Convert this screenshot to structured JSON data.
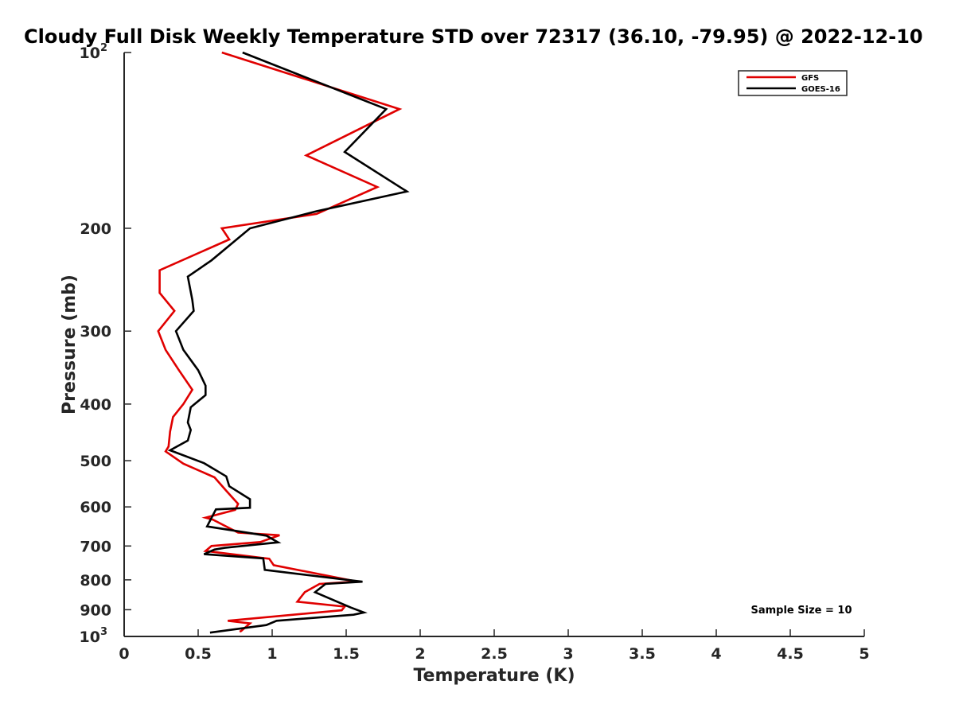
{
  "chart_data": {
    "type": "line",
    "title": "Cloudy Full Disk Weekly Temperature STD over 72317 (36.10, -79.95) @ 2022-12-10",
    "xlabel": "Temperature (K)",
    "ylabel": "Pressure (mb)",
    "xlim": [
      0,
      5
    ],
    "ylim": [
      100,
      1000
    ],
    "y_scale": "log",
    "y_reversed": true,
    "x_ticks": [
      "0",
      "0.5",
      "1",
      "1.5",
      "2",
      "2.5",
      "3",
      "3.5",
      "4",
      "4.5",
      "5"
    ],
    "y_ticks": [
      {
        "value": 100,
        "base": "10",
        "exp": "2"
      },
      {
        "value": 200,
        "label": "200"
      },
      {
        "value": 300,
        "label": "300"
      },
      {
        "value": 400,
        "label": "400"
      },
      {
        "value": 500,
        "label": "500"
      },
      {
        "value": 600,
        "label": "600"
      },
      {
        "value": 700,
        "label": "700"
      },
      {
        "value": 800,
        "label": "800"
      },
      {
        "value": 900,
        "label": "900"
      },
      {
        "value": 1000,
        "base": "10",
        "exp": "3"
      }
    ],
    "legend_position": "top-right",
    "grid": false,
    "annotation": "Sample Size = 10",
    "series": [
      {
        "name": "GFS",
        "color": "#e00000",
        "points": [
          [
            0.66,
            100
          ],
          [
            1.86,
            125
          ],
          [
            1.23,
            150
          ],
          [
            1.71,
            170
          ],
          [
            1.3,
            189
          ],
          [
            0.66,
            200
          ],
          [
            0.71,
            209
          ],
          [
            0.24,
            236
          ],
          [
            0.24,
            258
          ],
          [
            0.34,
            277
          ],
          [
            0.23,
            300
          ],
          [
            0.28,
            323
          ],
          [
            0.37,
            350
          ],
          [
            0.46,
            378
          ],
          [
            0.4,
            400
          ],
          [
            0.33,
            421
          ],
          [
            0.31,
            446
          ],
          [
            0.3,
            473
          ],
          [
            0.28,
            482
          ],
          [
            0.4,
            506
          ],
          [
            0.61,
            534
          ],
          [
            0.69,
            563
          ],
          [
            0.77,
            593
          ],
          [
            0.75,
            607
          ],
          [
            0.55,
            626
          ],
          [
            0.6,
            631
          ],
          [
            0.77,
            664
          ],
          [
            1.05,
            671
          ],
          [
            0.92,
            689
          ],
          [
            0.59,
            700
          ],
          [
            0.55,
            714
          ],
          [
            0.98,
            736
          ],
          [
            1.01,
            755
          ],
          [
            1.57,
            805
          ],
          [
            1.32,
            813
          ],
          [
            1.22,
            840
          ],
          [
            1.17,
            872
          ],
          [
            1.49,
            889
          ],
          [
            1.47,
            902
          ],
          [
            0.7,
            940
          ],
          [
            0.85,
            950
          ],
          [
            0.79,
            979
          ],
          [
            0.78,
            981
          ]
        ]
      },
      {
        "name": "GOES-16",
        "color": "#000000",
        "points": [
          [
            0.8,
            100
          ],
          [
            1.77,
            125
          ],
          [
            1.49,
            148
          ],
          [
            1.91,
            173
          ],
          [
            1.3,
            187
          ],
          [
            0.85,
            200
          ],
          [
            0.59,
            227
          ],
          [
            0.43,
            242
          ],
          [
            0.46,
            265
          ],
          [
            0.47,
            277
          ],
          [
            0.35,
            300
          ],
          [
            0.4,
            323
          ],
          [
            0.5,
            350
          ],
          [
            0.55,
            372
          ],
          [
            0.55,
            386
          ],
          [
            0.45,
            405
          ],
          [
            0.43,
            430
          ],
          [
            0.45,
            443
          ],
          [
            0.43,
            462
          ],
          [
            0.31,
            480
          ],
          [
            0.54,
            505
          ],
          [
            0.69,
            532
          ],
          [
            0.71,
            553
          ],
          [
            0.85,
            582
          ],
          [
            0.85,
            602
          ],
          [
            0.62,
            606
          ],
          [
            0.56,
            648
          ],
          [
            0.96,
            672
          ],
          [
            1.04,
            690
          ],
          [
            0.68,
            705
          ],
          [
            0.61,
            710
          ],
          [
            0.54,
            723
          ],
          [
            0.94,
            735
          ],
          [
            0.95,
            769
          ],
          [
            1.61,
            806
          ],
          [
            1.36,
            813
          ],
          [
            1.29,
            840
          ],
          [
            1.53,
            892
          ],
          [
            1.62,
            910
          ],
          [
            1.55,
            918
          ],
          [
            1.03,
            940
          ],
          [
            0.96,
            956
          ],
          [
            0.58,
            985
          ]
        ]
      }
    ]
  }
}
